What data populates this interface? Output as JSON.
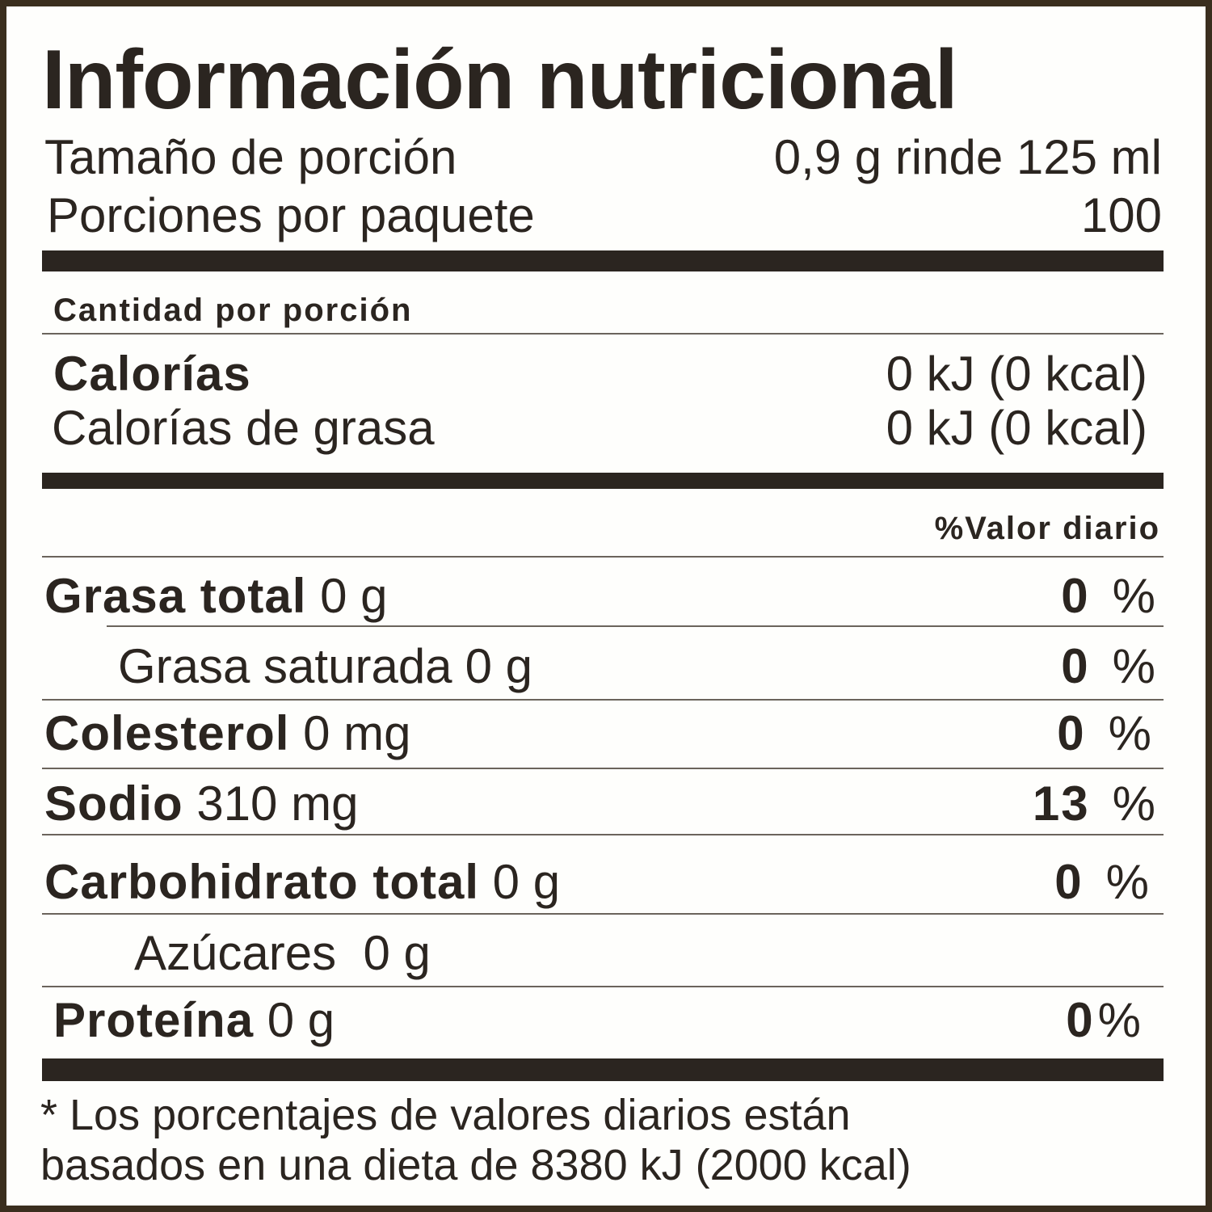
{
  "title": "Información nutricional",
  "serving": {
    "label": "Tamaño de porción",
    "value": "0,9 g rinde 125 ml"
  },
  "servings_per_package": {
    "label": "Porciones por paquete",
    "value": "100"
  },
  "amount_header": "Cantidad por porción",
  "calories": {
    "label": "Calorías",
    "value": "0 kJ (0 kcal)"
  },
  "fat_calories": {
    "label": "Calorías de grasa",
    "value": "0 kJ (0 kcal)"
  },
  "dv_header": "%Valor diario",
  "nutrients": [
    {
      "name": "Grasa total",
      "amount": "0 g",
      "dv": "0",
      "unit": "%"
    },
    {
      "name": "Grasa saturada",
      "amount": "0 g",
      "dv": "0",
      "unit": "%"
    },
    {
      "name": "Colesterol",
      "amount": "0 mg",
      "dv": "0",
      "unit": "%"
    },
    {
      "name": "Sodio",
      "amount": "310 mg",
      "dv": "13",
      "unit": "%"
    },
    {
      "name": "Carbohidrato total",
      "amount": "0 g",
      "dv": "0",
      "unit": "%"
    },
    {
      "name": "Azúcares",
      "amount": "0 g"
    },
    {
      "name": "Proteína",
      "amount": "0 g",
      "dv": "0",
      "unit": "%"
    }
  ],
  "footnote": [
    "* Los porcentajes de valores diarios están",
    "basados en una dieta de 8380 kJ (2000 kcal)"
  ]
}
